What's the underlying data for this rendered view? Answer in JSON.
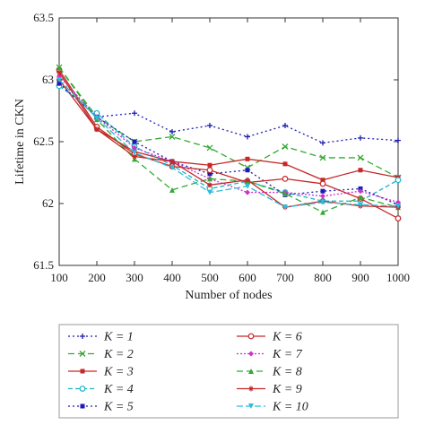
{
  "chart_data": {
    "type": "line",
    "xlabel": "Number of nodes",
    "ylabel": "Lifetime in CKN",
    "xlim": [
      100,
      1000
    ],
    "ylim": [
      61.5,
      63.5
    ],
    "x_ticks": [
      "100",
      "200",
      "300",
      "400",
      "500",
      "600",
      "700",
      "800",
      "900",
      "1000"
    ],
    "y_ticks": [
      "61.5",
      "62",
      "62.5",
      "63",
      "63.5"
    ],
    "x": [
      100,
      200,
      300,
      400,
      500,
      600,
      700,
      800,
      900,
      1000
    ],
    "legend_position": "below",
    "series": [
      {
        "name": "K = 1",
        "values": [
          63.0,
          62.7,
          62.73,
          62.58,
          62.63,
          62.54,
          62.63,
          62.49,
          62.53,
          62.51
        ],
        "color": "#1c1cb4",
        "dash": "2,3",
        "marker": "plus"
      },
      {
        "name": "K = 2",
        "values": [
          63.1,
          62.7,
          62.5,
          62.54,
          62.45,
          62.29,
          62.46,
          62.37,
          62.37,
          62.21
        ],
        "color": "#33aa33",
        "dash": "7,4",
        "marker": "x"
      },
      {
        "name": "K = 3",
        "values": [
          63.0,
          62.6,
          62.42,
          62.34,
          62.31,
          62.36,
          62.32,
          62.19,
          62.27,
          62.21
        ],
        "color": "#c62828",
        "dash": "",
        "marker": "square"
      },
      {
        "name": "K = 4",
        "values": [
          62.95,
          62.73,
          62.46,
          62.31,
          62.12,
          62.18,
          62.09,
          62.02,
          62.02,
          62.19
        ],
        "color": "#1ab4c8",
        "dash": "5,3",
        "marker": "circle-open"
      },
      {
        "name": "K = 5",
        "values": [
          62.97,
          62.7,
          62.5,
          62.34,
          62.24,
          62.27,
          62.07,
          62.1,
          62.12,
          61.99
        ],
        "color": "#1c1cb4",
        "dash": "2,3",
        "marker": "square"
      },
      {
        "name": "K = 6",
        "values": [
          63.08,
          62.62,
          62.4,
          62.3,
          62.27,
          62.17,
          62.2,
          62.16,
          62.04,
          61.88
        ],
        "color": "#c62828",
        "dash": "",
        "marker": "circle-open"
      },
      {
        "name": "K = 7",
        "values": [
          63.03,
          62.7,
          62.45,
          62.34,
          62.2,
          62.09,
          62.09,
          62.06,
          62.1,
          62.01
        ],
        "color": "#cc33cc",
        "dash": "2,2",
        "marker": "diamond"
      },
      {
        "name": "K = 8",
        "values": [
          63.1,
          62.68,
          62.36,
          62.11,
          62.2,
          62.18,
          62.08,
          61.93,
          62.05,
          61.97
        ],
        "color": "#33aa33",
        "dash": "7,4",
        "marker": "triangle"
      },
      {
        "name": "K = 9",
        "values": [
          63.06,
          62.6,
          62.38,
          62.34,
          62.15,
          62.19,
          61.97,
          62.02,
          61.98,
          61.97
        ],
        "color": "#c62828",
        "dash": "",
        "marker": "star"
      },
      {
        "name": "K = 10",
        "values": [
          63.0,
          62.69,
          62.41,
          62.29,
          62.09,
          62.14,
          61.97,
          62.01,
          61.99,
          61.98
        ],
        "color": "#2abed8",
        "dash": "7,3",
        "marker": "triangle-down"
      }
    ]
  }
}
